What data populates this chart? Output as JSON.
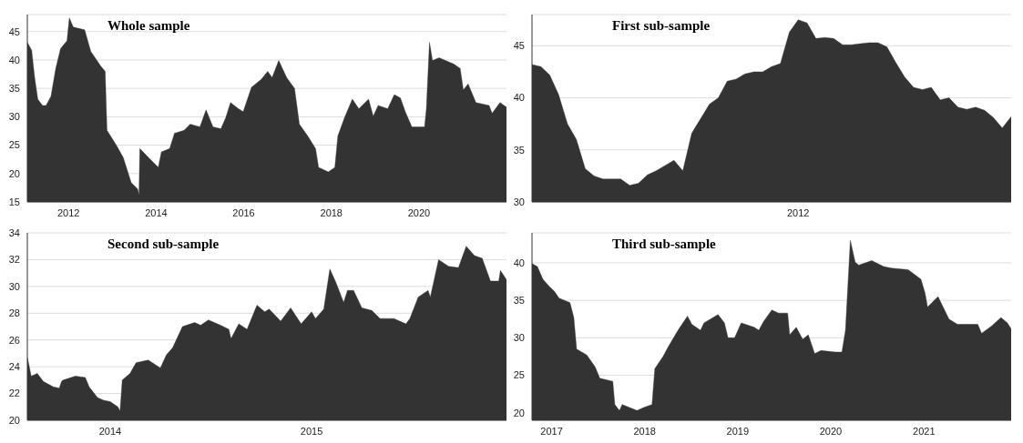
{
  "chart_data": [
    {
      "type": "area",
      "title": "Whole sample",
      "xlim": [
        "2011-01-23",
        "2021-12-31"
      ],
      "xticks": [
        "2012",
        "2014",
        "2016",
        "2018",
        "2020"
      ],
      "ylim": [
        15,
        48
      ],
      "yticks": [
        15,
        20,
        25,
        30,
        35,
        40,
        45
      ],
      "grid": "y",
      "x": [
        "2011-01-23",
        "2011-02-28",
        "2011-03-25",
        "2011-04-20",
        "2011-05-30",
        "2011-06-28",
        "2011-08-08",
        "2011-09-17",
        "2011-10-27",
        "2011-12-20",
        "2012-01-08",
        "2012-02-10",
        "2012-05-15",
        "2012-07-05",
        "2012-09-24",
        "2012-11-02",
        "2012-11-17",
        "2013-02-06",
        "2013-04-02",
        "2013-06-07",
        "2013-07-31",
        "2013-08-11",
        "2013-08-18",
        "2013-10-30",
        "2014-01-19",
        "2014-02-14",
        "2014-04-24",
        "2014-06-03",
        "2014-08-22",
        "2014-10-12",
        "2015-01-01",
        "2015-02-21",
        "2015-04-20",
        "2015-06-25",
        "2015-08-04",
        "2015-09-13",
        "2015-11-18",
        "2015-12-28",
        "2016-03-06",
        "2016-05-26",
        "2016-07-19",
        "2016-08-25",
        "2016-10-19",
        "2016-12-24",
        "2017-02-28",
        "2017-04-09",
        "2017-06-18",
        "2017-08-22",
        "2017-09-16",
        "2017-12-06",
        "2018-01-30",
        "2018-02-24",
        "2018-04-20",
        "2018-06-25",
        "2018-08-18",
        "2018-11-07",
        "2018-12-16",
        "2019-01-26",
        "2019-04-16",
        "2019-06-10",
        "2019-07-31",
        "2019-09-09",
        "2019-11-03",
        "2020-02-17",
        "2020-03-03",
        "2020-03-29",
        "2020-04-23",
        "2020-06-17",
        "2020-10-16",
        "2020-12-10",
        "2021-01-05",
        "2021-02-14",
        "2021-04-20",
        "2021-08-08",
        "2021-09-02",
        "2021-11-07",
        "2021-12-31"
      ],
      "series": [
        {
          "color": "#333333",
          "values": [
            43.1,
            41.7,
            36.9,
            33.1,
            32.0,
            32.0,
            33.6,
            38.5,
            42.0,
            43.4,
            47.4,
            45.8,
            45.3,
            41.5,
            39.0,
            38.0,
            27.6,
            24.9,
            22.8,
            18.4,
            17.3,
            16.2,
            24.4,
            22.8,
            21.1,
            23.8,
            24.4,
            27.1,
            27.6,
            28.7,
            28.2,
            31.2,
            28.2,
            27.9,
            29.8,
            32.5,
            31.4,
            30.9,
            35.2,
            36.6,
            38.0,
            36.9,
            39.9,
            36.9,
            35.0,
            28.7,
            26.6,
            24.4,
            21.1,
            20.3,
            21.1,
            26.6,
            29.8,
            33.1,
            31.4,
            33.1,
            30.1,
            32.0,
            31.4,
            33.9,
            33.3,
            30.9,
            28.2,
            28.2,
            31.4,
            43.1,
            39.9,
            40.4,
            39.3,
            38.5,
            34.7,
            35.8,
            32.5,
            32.0,
            30.6,
            32.5,
            31.7
          ]
        }
      ]
    },
    {
      "type": "area",
      "title": "First sub-sample",
      "ylim": [
        30,
        48
      ],
      "yticks": [
        30,
        35,
        40,
        45
      ],
      "grid": "y",
      "categories": [
        null,
        null,
        null,
        null,
        null,
        null,
        null,
        null,
        null,
        null,
        null,
        null,
        null,
        null,
        null,
        null,
        null,
        null,
        null,
        null,
        null,
        null,
        null,
        null,
        null,
        null,
        null,
        null,
        null,
        null,
        "2012",
        null,
        null,
        null,
        null,
        null,
        null,
        null,
        null,
        null,
        null,
        null,
        null,
        null,
        null,
        null,
        null,
        null,
        null,
        null,
        null,
        null,
        null,
        null,
        null
      ],
      "series": [
        {
          "color": "#333333",
          "values": [
            43.2,
            43.0,
            42.2,
            40.3,
            37.5,
            36.0,
            33.2,
            32.5,
            32.2,
            32.2,
            32.2,
            31.6,
            31.8,
            32.6,
            33.0,
            33.5,
            34.0,
            33.0,
            36.6,
            38.0,
            39.4,
            40.0,
            41.6,
            41.8,
            42.3,
            42.5,
            42.5,
            43.0,
            43.3,
            46.3,
            47.5,
            47.2,
            45.7,
            45.8,
            45.7,
            45.1,
            45.1,
            45.2,
            45.3,
            45.3,
            44.9,
            43.4,
            42.0,
            41.0,
            40.8,
            41.0,
            39.8,
            40.0,
            39.1,
            38.9,
            39.1,
            38.8,
            38.1,
            37.1,
            38.2
          ]
        }
      ]
    },
    {
      "type": "area",
      "title": "Second sub-sample",
      "xlim": [
        "2013-08-04",
        "2015-12-20"
      ],
      "xticks": [
        "2014",
        "2015"
      ],
      "ylim": [
        20,
        34
      ],
      "yticks": [
        20,
        22,
        24,
        26,
        28,
        30,
        32,
        34
      ],
      "grid": "y",
      "x": [
        "2013-08-04",
        "2013-08-11",
        "2013-08-22",
        "2013-09-02",
        "2013-09-20",
        "2013-10-01",
        "2013-10-05",
        "2013-10-08",
        "2013-10-30",
        "2013-11-17",
        "2013-11-24",
        "2013-12-09",
        "2013-12-20",
        "2014-01-01",
        "2014-01-15",
        "2014-01-19",
        "2014-01-23",
        "2014-02-06",
        "2014-02-17",
        "2014-03-11",
        "2014-04-02",
        "2014-04-13",
        "2014-04-24",
        "2014-05-12",
        "2014-06-03",
        "2014-06-14",
        "2014-06-28",
        "2014-07-20",
        "2014-08-04",
        "2014-08-08",
        "2014-08-22",
        "2014-09-06",
        "2014-09-24",
        "2014-10-08",
        "2014-10-16",
        "2014-11-06",
        "2014-11-24",
        "2014-12-13",
        "2015-01-01",
        "2015-01-08",
        "2015-01-23",
        "2015-02-03",
        "2015-02-14",
        "2015-02-28",
        "2015-03-07",
        "2015-03-18",
        "2015-04-02",
        "2015-04-20",
        "2015-05-05",
        "2015-05-30",
        "2015-06-21",
        "2015-06-28",
        "2015-07-13",
        "2015-07-31",
        "2015-08-04",
        "2015-08-19",
        "2015-09-06",
        "2015-09-24",
        "2015-10-08",
        "2015-10-23",
        "2015-11-06",
        "2015-11-21",
        "2015-12-06",
        "2015-12-09",
        "2015-12-20"
      ],
      "series": [
        {
          "color": "#333333",
          "values": [
            24.7,
            23.3,
            23.5,
            22.9,
            22.5,
            22.4,
            22.9,
            23.0,
            23.3,
            23.2,
            22.5,
            21.7,
            21.5,
            21.4,
            21.0,
            20.7,
            23.0,
            23.5,
            24.3,
            24.5,
            23.9,
            24.9,
            25.4,
            27.0,
            27.3,
            27.1,
            27.5,
            27.1,
            26.8,
            26.1,
            27.2,
            26.8,
            28.6,
            28.1,
            28.3,
            27.4,
            28.4,
            27.2,
            28.1,
            27.6,
            28.3,
            31.3,
            30.3,
            28.8,
            29.7,
            29.7,
            28.4,
            28.2,
            27.6,
            27.6,
            27.2,
            27.6,
            29.2,
            29.7,
            29.2,
            32.0,
            31.5,
            31.4,
            33.0,
            32.3,
            32.1,
            30.4,
            30.4,
            31.2,
            30.5
          ]
        }
      ]
    },
    {
      "type": "area",
      "title": "Third sub-sample",
      "xlim": [
        "2016-10-16",
        "2021-12-09"
      ],
      "xticks": [
        "2017",
        "2018",
        "2019",
        "2020",
        "2021"
      ],
      "ylim": [
        19,
        44
      ],
      "yticks": [
        20,
        25,
        30,
        35,
        40
      ],
      "grid": "y",
      "x": [
        "2016-10-16",
        "2016-11-06",
        "2016-11-28",
        "2016-12-24",
        "2017-01-12",
        "2017-01-30",
        "2017-03-14",
        "2017-03-29",
        "2017-04-09",
        "2017-05-19",
        "2017-06-21",
        "2017-07-09",
        "2017-08-29",
        "2017-09-06",
        "2017-09-24",
        "2017-10-05",
        "2017-12-02",
        "2017-12-28",
        "2018-01-30",
        "2018-02-10",
        "2018-03-14",
        "2018-04-02",
        "2018-05-12",
        "2018-06-18",
        "2018-07-05",
        "2018-08-08",
        "2018-08-22",
        "2018-10-16",
        "2018-11-10",
        "2018-11-24",
        "2018-12-20",
        "2019-01-15",
        "2019-03-07",
        "2019-03-25",
        "2019-04-13",
        "2019-05-15",
        "2019-06-10",
        "2019-07-16",
        "2019-07-24",
        "2019-08-19",
        "2019-09-13",
        "2019-10-05",
        "2019-10-30",
        "2019-11-24",
        "2020-01-19",
        "2020-02-14",
        "2020-02-28",
        "2020-03-18",
        "2020-04-06",
        "2020-04-20",
        "2020-06-10",
        "2020-07-27",
        "2020-08-26",
        "2020-10-31",
        "2020-12-20",
        "2021-01-05",
        "2021-01-15",
        "2021-02-25",
        "2021-04-09",
        "2021-05-12",
        "2021-07-31",
        "2021-08-15",
        "2021-09-24",
        "2021-10-30",
        "2021-11-24",
        "2021-12-09"
      ],
      "series": [
        {
          "color": "#333333",
          "values": [
            39.9,
            39.5,
            37.8,
            36.8,
            36.2,
            35.3,
            34.7,
            32.7,
            28.5,
            27.7,
            26.1,
            24.6,
            24.2,
            21.1,
            20.3,
            21.1,
            20.3,
            20.7,
            21.1,
            25.9,
            27.5,
            28.7,
            31.0,
            32.9,
            31.8,
            31.0,
            32.0,
            33.1,
            32.0,
            30.0,
            30.0,
            32.0,
            31.4,
            31.0,
            32.2,
            33.7,
            33.3,
            33.3,
            30.4,
            31.4,
            29.8,
            30.4,
            27.9,
            28.3,
            28.1,
            28.1,
            31.0,
            43.0,
            40.1,
            39.7,
            40.3,
            39.5,
            39.3,
            39.1,
            37.8,
            36.0,
            34.1,
            35.5,
            32.5,
            31.8,
            31.8,
            30.6,
            31.6,
            32.7,
            32.0,
            31.2
          ]
        }
      ]
    }
  ]
}
